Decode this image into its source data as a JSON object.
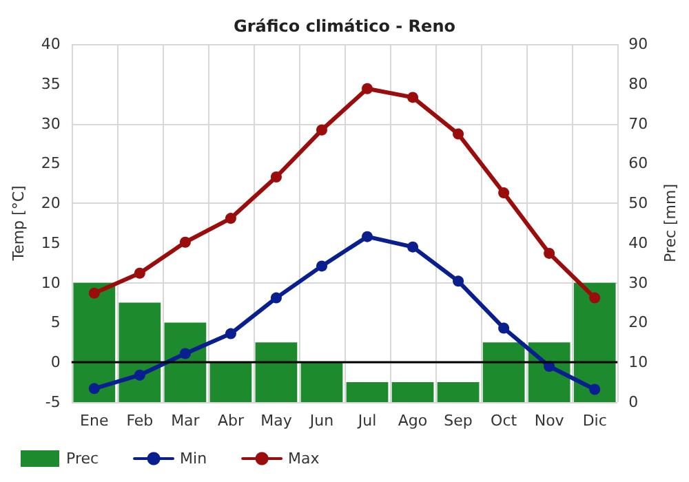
{
  "chart_data": {
    "type": "line",
    "title": "Gráfico climático - Reno",
    "ylabel": "Temp [°C]",
    "y2label": "Prec [mm]",
    "categories": [
      "Ene",
      "Feb",
      "Mar",
      "Abr",
      "May",
      "Jun",
      "Jul",
      "Ago",
      "Sep",
      "Oct",
      "Nov",
      "Dic"
    ],
    "series": [
      {
        "name": "Prec",
        "type": "bar",
        "axis": "y2",
        "color": "#1e8a2e",
        "values": [
          30,
          25,
          20,
          10,
          15,
          10,
          5,
          5,
          5,
          15,
          15,
          30
        ]
      },
      {
        "name": "Min",
        "color": "#0a1f8f",
        "values": [
          -3.3,
          -1.6,
          1.1,
          3.6,
          8.1,
          12.1,
          15.8,
          14.5,
          10.2,
          4.3,
          -0.5,
          -3.4
        ]
      },
      {
        "name": "Max",
        "color": "#9b0c0c",
        "values": [
          8.7,
          11.2,
          15.1,
          18.1,
          23.3,
          29.2,
          34.4,
          33.3,
          28.7,
          21.3,
          13.7,
          8.1
        ]
      }
    ],
    "ylim": [
      -5,
      40
    ],
    "yticks": [
      -5,
      0,
      5,
      10,
      15,
      20,
      25,
      30,
      35,
      40
    ],
    "y2lim": [
      0,
      90
    ],
    "y2ticks": [
      0,
      10,
      20,
      30,
      40,
      50,
      60,
      70,
      80,
      90
    ],
    "ref_lines": [
      {
        "axis": "y",
        "value": 0,
        "color": "#000000"
      }
    ],
    "grid": true,
    "legend": "bottom left",
    "marker": "circle",
    "line_style": "solid"
  }
}
